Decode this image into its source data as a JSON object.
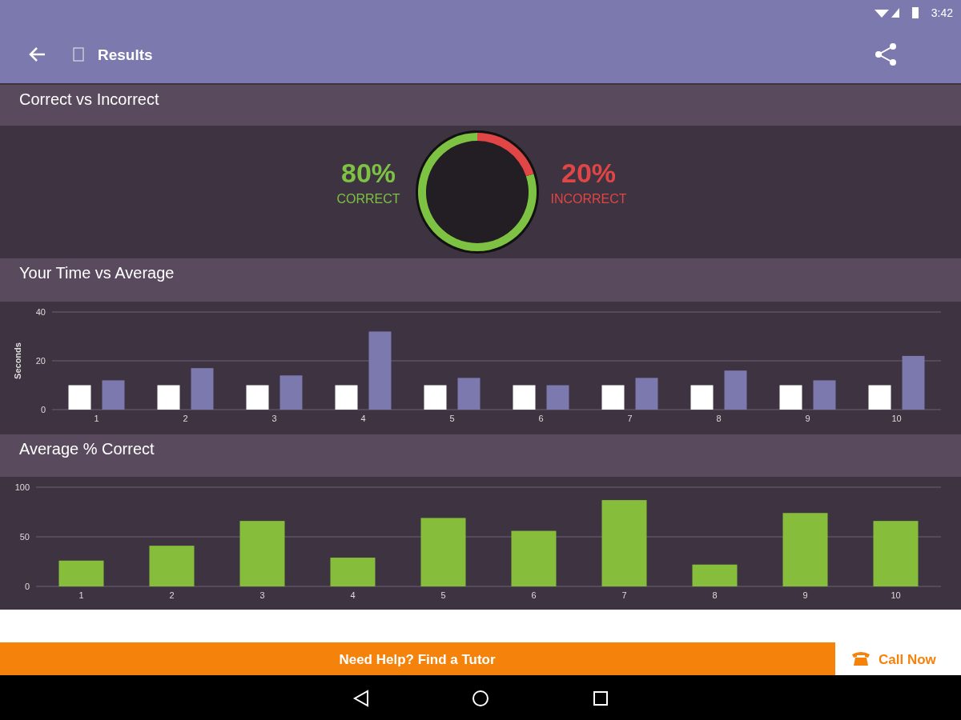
{
  "chart_data": [
    {
      "type": "other",
      "title": "Results",
      "annotations": [
        "3:42",
        "Need Help? Find a Tutor",
        "Call Now"
      ]
    },
    {
      "type": "donut",
      "title": "Correct vs Incorrect",
      "categories": [
        "CORRECT",
        "INCORRECT"
      ],
      "values": [
        80,
        20
      ],
      "colors": [
        "#7dc242",
        "#e04646"
      ],
      "value_labels": [
        "80%",
        "20%"
      ]
    },
    {
      "type": "bar",
      "title": "Your Time vs Average",
      "ylabel": "Seconds",
      "categories": [
        "1",
        "2",
        "3",
        "4",
        "5",
        "6",
        "7",
        "8",
        "9",
        "10"
      ],
      "series": [
        {
          "color": "#ffffff",
          "values": [
            10,
            10,
            10,
            10,
            10,
            10,
            10,
            10,
            10,
            10
          ]
        },
        {
          "color": "#7b79ae",
          "values": [
            12,
            17,
            14,
            32,
            13,
            10,
            13,
            16,
            12,
            22
          ]
        }
      ],
      "ylim": [
        0,
        40
      ],
      "yticks": [
        0,
        20,
        40
      ],
      "grid": "y"
    },
    {
      "type": "bar",
      "title": "Average % Correct",
      "categories": [
        "1",
        "2",
        "3",
        "4",
        "5",
        "6",
        "7",
        "8",
        "9",
        "10"
      ],
      "color": "#86bd3a",
      "values": [
        26,
        41,
        66,
        29,
        69,
        56,
        87,
        22,
        74,
        66
      ],
      "ylim": [
        0,
        100
      ],
      "yticks": [
        0,
        50,
        100
      ],
      "grid": "y"
    }
  ]
}
